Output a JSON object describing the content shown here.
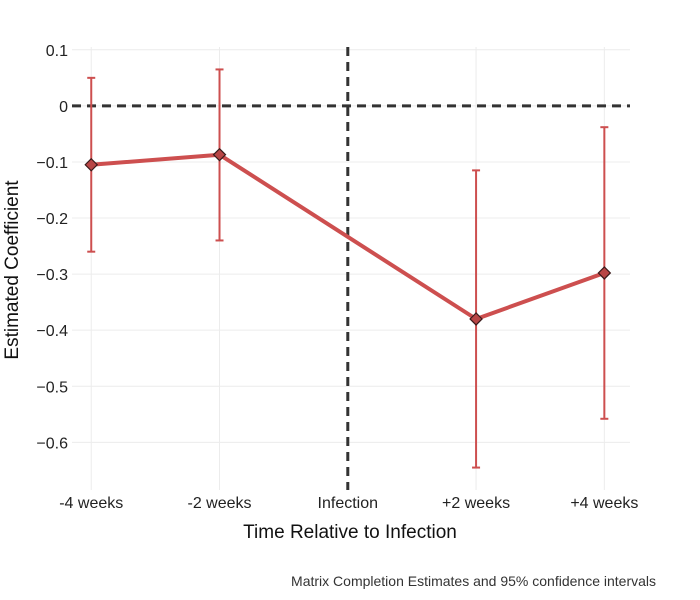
{
  "chart_data": {
    "type": "line",
    "title": "",
    "xlabel": "Time Relative to Infection",
    "ylabel": "Estimated Coefficient",
    "caption": "Matrix Completion Estimates and 95% confidence intervals",
    "categories": [
      "-4 weeks",
      "-2 weeks",
      "+2 weeks",
      "+4 weeks"
    ],
    "x": [
      -4,
      -2,
      2,
      4
    ],
    "series": [
      {
        "values": [
          -0.105,
          -0.087,
          -0.38,
          -0.298
        ],
        "ci_lower": [
          -0.26,
          -0.24,
          -0.645,
          -0.558
        ],
        "ci_upper": [
          0.05,
          0.065,
          -0.115,
          -0.038
        ],
        "color": "#cd4f4f"
      }
    ],
    "yticks": [
      0.1,
      0,
      -0.1,
      -0.2,
      -0.3,
      -0.4,
      -0.5,
      -0.6
    ],
    "ytick_labels": [
      "0.1",
      "0",
      "−0.1",
      "−0.2",
      "−0.3",
      "−0.4",
      "−0.5",
      "−0.6"
    ],
    "ylim": [
      -0.685,
      0.105
    ],
    "xlim": [
      -4.3,
      4.4
    ],
    "reference_lines": {
      "horizontal_y": 0,
      "vertical_x": 0,
      "vertical_label": "Infection"
    },
    "grid": true,
    "legend": "none",
    "colors": {
      "series": "#cd4f4f",
      "marker_fill": "#b84545",
      "marker_stroke": "#3a1a1a",
      "reference": "#333333",
      "grid": "#ececec"
    }
  }
}
